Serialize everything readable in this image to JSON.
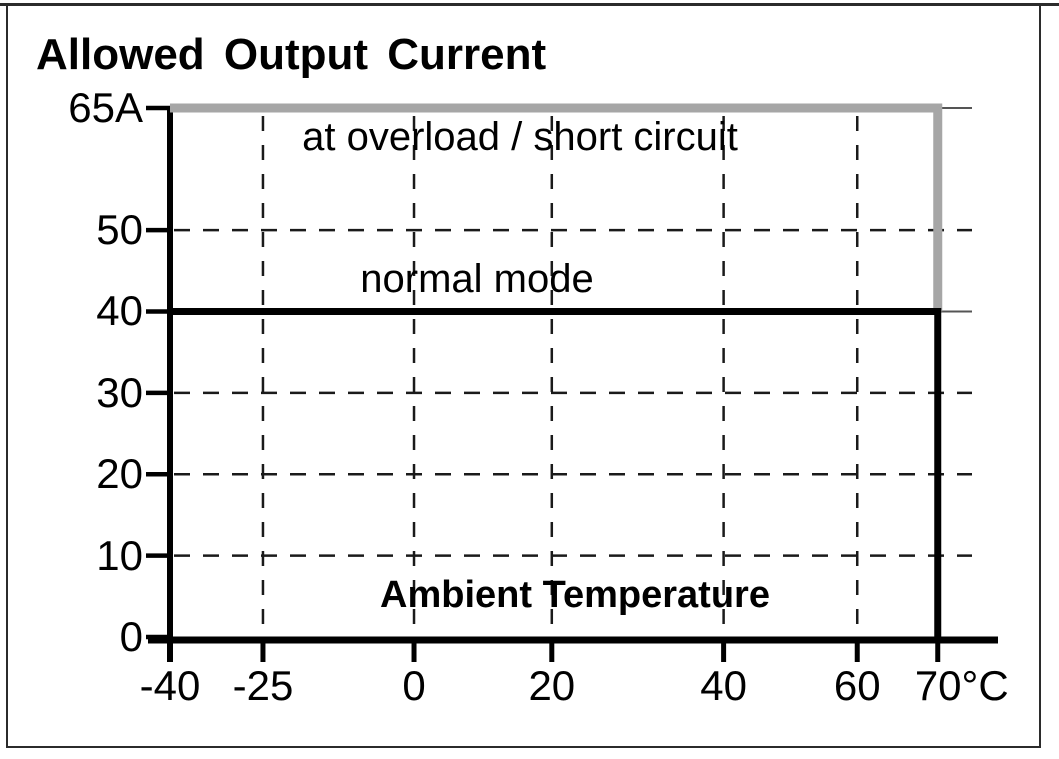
{
  "chart_data": {
    "type": "line",
    "title": "Allowed Output Current",
    "xlabel": "Ambient Temperature",
    "ylabel": "Allowed Output Current",
    "xlim": [
      -40,
      78
    ],
    "ylim": [
      0,
      65
    ],
    "grid": "dashed",
    "legend_position": "inline-annotations",
    "x_axis": {
      "label": "Ambient Temperature",
      "unit": "°C",
      "ticks": [
        {
          "value": -40,
          "label": "-40"
        },
        {
          "value": -25,
          "label": "-25"
        },
        {
          "value": 0,
          "label": "0"
        },
        {
          "value": 20,
          "label": "20"
        },
        {
          "value": 40,
          "label": "40"
        },
        {
          "value": 60,
          "label": "60"
        },
        {
          "value": 70,
          "label": "70°C"
        }
      ]
    },
    "y_axis": {
      "unit": "A",
      "ticks": [
        {
          "value": 0,
          "label": "0"
        },
        {
          "value": 10,
          "label": "10"
        },
        {
          "value": 20,
          "label": "20"
        },
        {
          "value": 30,
          "label": "30"
        },
        {
          "value": 40,
          "label": "40"
        },
        {
          "value": 50,
          "label": "50"
        },
        {
          "value": 65,
          "label": "65A"
        }
      ]
    },
    "series": [
      {
        "name": "at overload / short circuit",
        "color": "#a6a6a6",
        "points": [
          [
            -40,
            65
          ],
          [
            70,
            65
          ],
          [
            70,
            40
          ]
        ]
      },
      {
        "name": "normal mode",
        "color": "#000000",
        "points": [
          [
            -40,
            40
          ],
          [
            70,
            40
          ],
          [
            70,
            0
          ]
        ]
      }
    ]
  },
  "colors": {
    "overload_line": "#a6a6a6",
    "normal_line": "#000000",
    "grid": "#1a1a1a",
    "axis": "#000000",
    "frame": "#2b2b2b",
    "background": "#ffffff"
  }
}
